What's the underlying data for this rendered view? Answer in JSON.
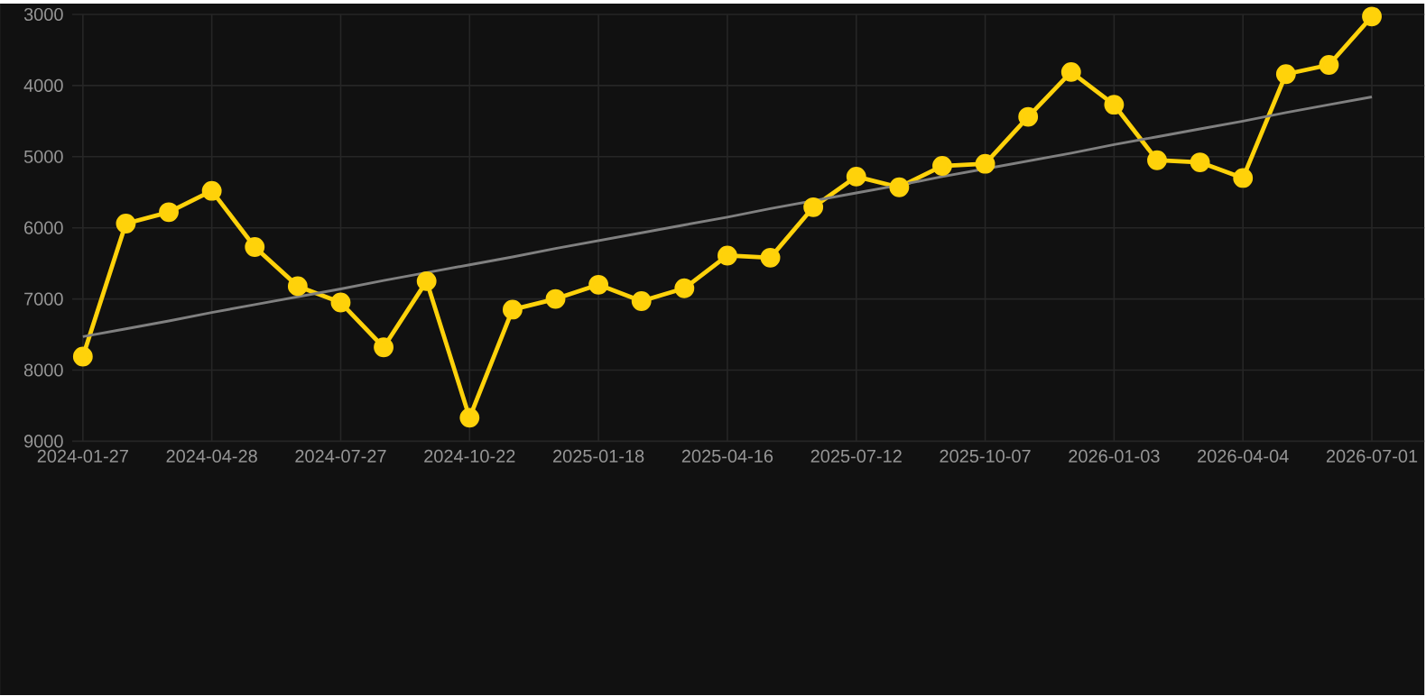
{
  "chart_data": {
    "type": "line",
    "categories": [
      "2024-01-27",
      null,
      null,
      "2024-04-28",
      null,
      null,
      "2024-07-27",
      null,
      null,
      "2024-10-22",
      null,
      null,
      "2025-01-18",
      null,
      null,
      "2025-04-16",
      null,
      null,
      "2025-07-12",
      null,
      null,
      "2025-10-07",
      null,
      null,
      "2026-01-03",
      null,
      null,
      "2026-04-04",
      null,
      null,
      "2026-07-01"
    ],
    "series": [
      {
        "color": "#ffd20a",
        "values": [
          7810,
          5940,
          5780,
          5480,
          6270,
          6820,
          7050,
          7680,
          6750,
          8670,
          7150,
          7000,
          6800,
          7030,
          6850,
          6390,
          6420,
          5710,
          5280,
          5430,
          5130,
          5100,
          4440,
          3810,
          4270,
          5050,
          5080,
          5300,
          3840,
          3710,
          3030
        ]
      },
      {
        "type": "line",
        "color": "#808080",
        "marker": "none",
        "values": [
          7530,
          7420,
          7310,
          7190,
          7080,
          6970,
          6860,
          6740,
          6630,
          6520,
          6410,
          6290,
          6180,
          6070,
          5960,
          5850,
          5730,
          5620,
          5510,
          5400,
          5280,
          5170,
          5060,
          4950,
          4830,
          4720,
          4610,
          4500,
          4380,
          4270,
          4160
        ]
      }
    ],
    "ylim": [
      9000,
      3000
    ],
    "yticks": [
      3000,
      4000,
      5000,
      6000,
      7000,
      8000,
      9000
    ],
    "grid": true,
    "marker": "circle",
    "line_style": "solid"
  }
}
